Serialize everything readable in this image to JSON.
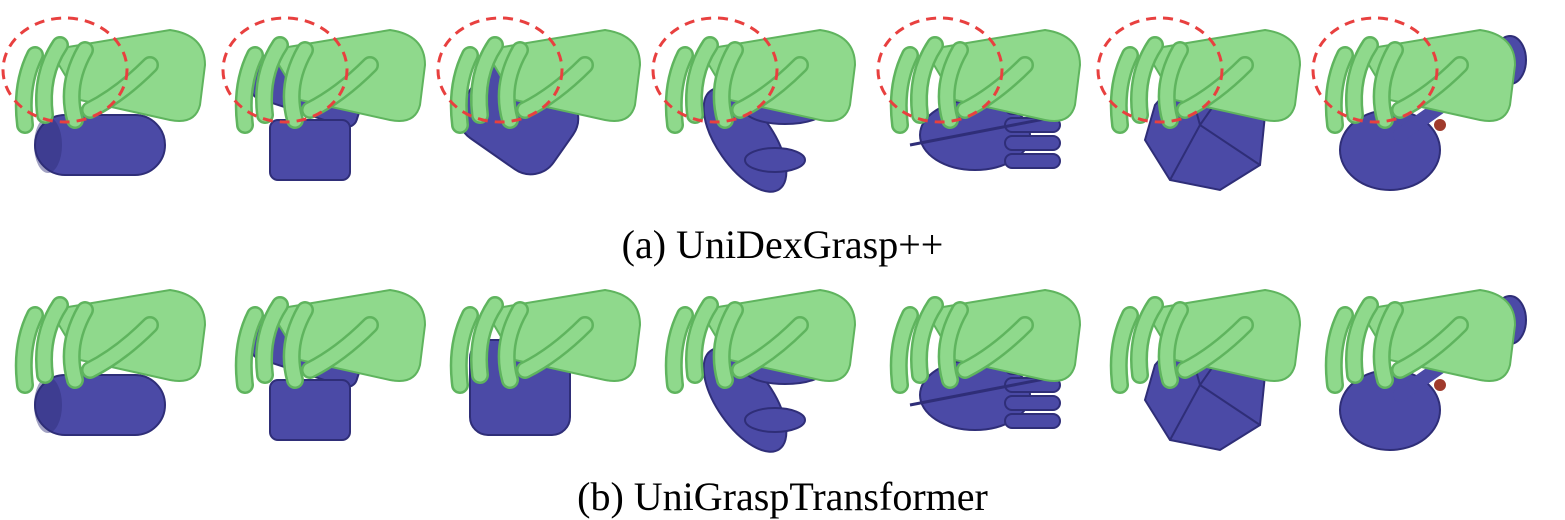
{
  "colors": {
    "hand": "#8fd98c",
    "hand_shade": "#5fb45e",
    "object": "#4b4aa6",
    "object_shade": "#2f2e78",
    "highlight_circle": "#e8403f",
    "contact_point": "#a03a2c"
  },
  "rows": [
    {
      "caption": "(a) UniDexGrasp++",
      "objects": [
        "capsule",
        "box",
        "cylinder",
        "toy",
        "multi-limb",
        "polyhedron",
        "plunger"
      ],
      "failure_circles": true
    },
    {
      "caption": "(b) UniGraspTransformer",
      "objects": [
        "capsule",
        "box",
        "rounded-box",
        "toy",
        "multi-limb",
        "polyhedron",
        "plunger"
      ],
      "failure_circles": false
    }
  ]
}
